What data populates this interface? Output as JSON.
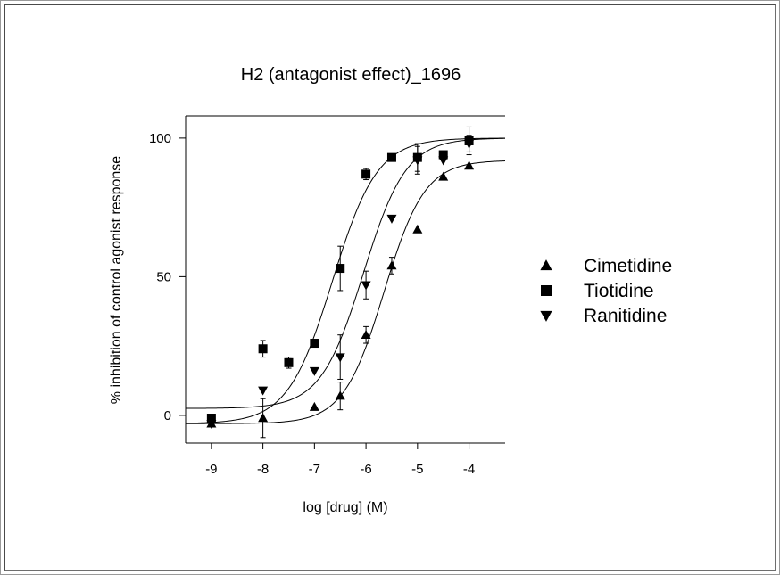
{
  "chart_data": {
    "type": "scatter",
    "title": "H2 (antagonist effect)_1696",
    "xlabel": "log [drug]  (M)",
    "ylabel": "% inhibition of control agonist response",
    "xlim": [
      -9.5,
      -3.3
    ],
    "ylim": [
      -10,
      108
    ],
    "xticks": [
      -9,
      -8,
      -7,
      -6,
      -5,
      -4
    ],
    "xtick_labels": [
      "-9",
      "-8",
      "-7",
      "-6",
      "-5",
      "-4"
    ],
    "yticks": [
      0,
      50,
      100
    ],
    "ytick_labels": [
      "0",
      "50",
      "100"
    ],
    "grid": false,
    "legend_position": "right",
    "series": [
      {
        "name": "Cimetidine",
        "marker": "triangle-up",
        "points": [
          {
            "x": -9,
            "y": -3
          },
          {
            "x": -8,
            "y": -1,
            "err": 7
          },
          {
            "x": -7,
            "y": 3
          },
          {
            "x": -6.5,
            "y": 7,
            "err": 5
          },
          {
            "x": -6,
            "y": 29,
            "err": 3
          },
          {
            "x": -5.5,
            "y": 54,
            "err": 3
          },
          {
            "x": -5,
            "y": 67
          },
          {
            "x": -4.5,
            "y": 86
          },
          {
            "x": -4,
            "y": 90
          }
        ],
        "fit": {
          "bottom": -3,
          "top": 92,
          "log_ic50": -5.65,
          "hill": 1.1
        }
      },
      {
        "name": "Tiotidine",
        "marker": "square",
        "points": [
          {
            "x": -9,
            "y": -1
          },
          {
            "x": -8,
            "y": 24,
            "err": 3
          },
          {
            "x": -7.5,
            "y": 19,
            "err": 2
          },
          {
            "x": -7,
            "y": 26
          },
          {
            "x": -6.5,
            "y": 53,
            "err": 8
          },
          {
            "x": -6,
            "y": 87,
            "err": 2
          },
          {
            "x": -5.5,
            "y": 93
          },
          {
            "x": -5,
            "y": 93,
            "err": 5
          },
          {
            "x": -4.5,
            "y": 94
          },
          {
            "x": -4,
            "y": 99,
            "err": 5
          }
        ],
        "fit": {
          "bottom": -3,
          "top": 100,
          "log_ic50": -6.65,
          "hill": 1.0
        }
      },
      {
        "name": "Ranitidine",
        "marker": "triangle-down",
        "points": [
          {
            "x": -9,
            "y": -3
          },
          {
            "x": -8,
            "y": 9
          },
          {
            "x": -7,
            "y": 16
          },
          {
            "x": -6.5,
            "y": 21,
            "err": 8
          },
          {
            "x": -6,
            "y": 47,
            "err": 5
          },
          {
            "x": -5.5,
            "y": 71
          },
          {
            "x": -5,
            "y": 92,
            "err": 5
          },
          {
            "x": -4.5,
            "y": 92
          },
          {
            "x": -4,
            "y": 98,
            "err": 3
          }
        ],
        "fit": {
          "bottom": 2.5,
          "top": 100,
          "log_ic50": -6.05,
          "hill": 1.05
        }
      }
    ]
  }
}
